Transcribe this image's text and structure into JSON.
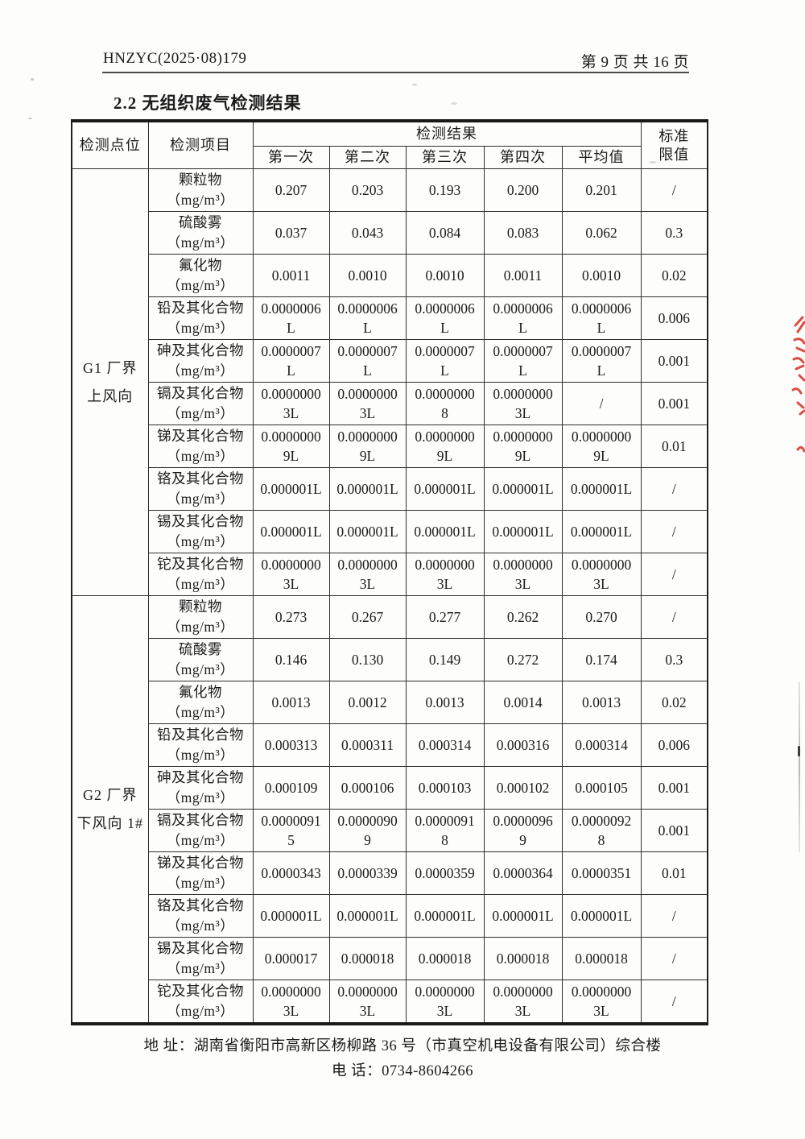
{
  "header": {
    "doc_number": "HNZYC(2025·08)179",
    "page_indicator": "第 9 页 共 16 页"
  },
  "section": {
    "title": "2.2 无组织废气检测结果"
  },
  "table": {
    "header": {
      "col_point": "检测点位",
      "col_item": "检测项目",
      "col_results": "检测结果",
      "sub_cols": [
        "第一次",
        "第二次",
        "第三次",
        "第四次",
        "平均值"
      ],
      "col_limit": "标准\n限值"
    },
    "groups": [
      {
        "point": "G1 厂界\n上风向",
        "rows": [
          {
            "item": "颗粒物",
            "unit": "（mg/m³）",
            "values": [
              "0.207",
              "0.203",
              "0.193",
              "0.200",
              "0.201"
            ],
            "limit": "/"
          },
          {
            "item": "硫酸雾",
            "unit": "（mg/m³）",
            "values": [
              "0.037",
              "0.043",
              "0.084",
              "0.083",
              "0.062"
            ],
            "limit": "0.3"
          },
          {
            "item": "氟化物",
            "unit": "（mg/m³）",
            "values": [
              "0.0011",
              "0.0010",
              "0.0010",
              "0.0011",
              "0.0010"
            ],
            "limit": "0.02"
          },
          {
            "item": "铅及其化合物",
            "unit": "（mg/m³）",
            "values": [
              "0.0000006\nL",
              "0.0000006\nL",
              "0.0000006\nL",
              "0.0000006\nL",
              "0.0000006\nL"
            ],
            "limit": "0.006"
          },
          {
            "item": "砷及其化合物",
            "unit": "（mg/m³）",
            "values": [
              "0.0000007\nL",
              "0.0000007\nL",
              "0.0000007\nL",
              "0.0000007\nL",
              "0.0000007\nL"
            ],
            "limit": "0.001"
          },
          {
            "item": "镉及其化合物",
            "unit": "（mg/m³）",
            "values": [
              "0.0000000\n3L",
              "0.0000000\n3L",
              "0.0000000\n8",
              "0.0000000\n3L",
              "/"
            ],
            "limit": "0.001"
          },
          {
            "item": "锑及其化合物",
            "unit": "（mg/m³）",
            "values": [
              "0.0000000\n9L",
              "0.0000000\n9L",
              "0.0000000\n9L",
              "0.0000000\n9L",
              "0.0000000\n9L"
            ],
            "limit": "0.01"
          },
          {
            "item": "铬及其化合物",
            "unit": "（mg/m³）",
            "values": [
              "0.000001L",
              "0.000001L",
              "0.000001L",
              "0.000001L",
              "0.000001L"
            ],
            "limit": "/"
          },
          {
            "item": "锡及其化合物",
            "unit": "（mg/m³）",
            "values": [
              "0.000001L",
              "0.000001L",
              "0.000001L",
              "0.000001L",
              "0.000001L"
            ],
            "limit": "/"
          },
          {
            "item": "铊及其化合物",
            "unit": "（mg/m³）",
            "values": [
              "0.0000000\n3L",
              "0.0000000\n3L",
              "0.0000000\n3L",
              "0.0000000\n3L",
              "0.0000000\n3L"
            ],
            "limit": "/"
          }
        ]
      },
      {
        "point": "G2 厂界\n下风向 1#",
        "rows": [
          {
            "item": "颗粒物",
            "unit": "（mg/m³）",
            "values": [
              "0.273",
              "0.267",
              "0.277",
              "0.262",
              "0.270"
            ],
            "limit": "/"
          },
          {
            "item": "硫酸雾",
            "unit": "（mg/m³）",
            "values": [
              "0.146",
              "0.130",
              "0.149",
              "0.272",
              "0.174"
            ],
            "limit": "0.3"
          },
          {
            "item": "氟化物",
            "unit": "（mg/m³）",
            "values": [
              "0.0013",
              "0.0012",
              "0.0013",
              "0.0014",
              "0.0013"
            ],
            "limit": "0.02"
          },
          {
            "item": "铅及其化合物",
            "unit": "（mg/m³）",
            "values": [
              "0.000313",
              "0.000311",
              "0.000314",
              "0.000316",
              "0.000314"
            ],
            "limit": "0.006"
          },
          {
            "item": "砷及其化合物",
            "unit": "（mg/m³）",
            "values": [
              "0.000109",
              "0.000106",
              "0.000103",
              "0.000102",
              "0.000105"
            ],
            "limit": "0.001"
          },
          {
            "item": "镉及其化合物",
            "unit": "（mg/m³）",
            "values": [
              "0.0000091\n5",
              "0.0000090\n9",
              "0.0000091\n8",
              "0.0000096\n9",
              "0.0000092\n8"
            ],
            "limit": "0.001"
          },
          {
            "item": "锑及其化合物",
            "unit": "（mg/m³）",
            "values": [
              "0.0000343",
              "0.0000339",
              "0.0000359",
              "0.0000364",
              "0.0000351"
            ],
            "limit": "0.01"
          },
          {
            "item": "铬及其化合物",
            "unit": "（mg/m³）",
            "values": [
              "0.000001L",
              "0.000001L",
              "0.000001L",
              "0.000001L",
              "0.000001L"
            ],
            "limit": "/"
          },
          {
            "item": "锡及其化合物",
            "unit": "（mg/m³）",
            "values": [
              "0.000017",
              "0.000018",
              "0.000018",
              "0.000018",
              "0.000018"
            ],
            "limit": "/"
          },
          {
            "item": "铊及其化合物",
            "unit": "（mg/m³）",
            "values": [
              "0.0000000\n3L",
              "0.0000000\n3L",
              "0.0000000\n3L",
              "0.0000000\n3L",
              "0.0000000\n3L"
            ],
            "limit": "/"
          }
        ]
      }
    ]
  },
  "footer": {
    "address_line": "地 址：湖南省衡阳市高新区杨柳路 36 号（市真空机电设备有限公司）综合楼",
    "phone_line": "电 话：0734-8604266"
  },
  "artifacts": {
    "stamp_color": "#d63c30"
  }
}
